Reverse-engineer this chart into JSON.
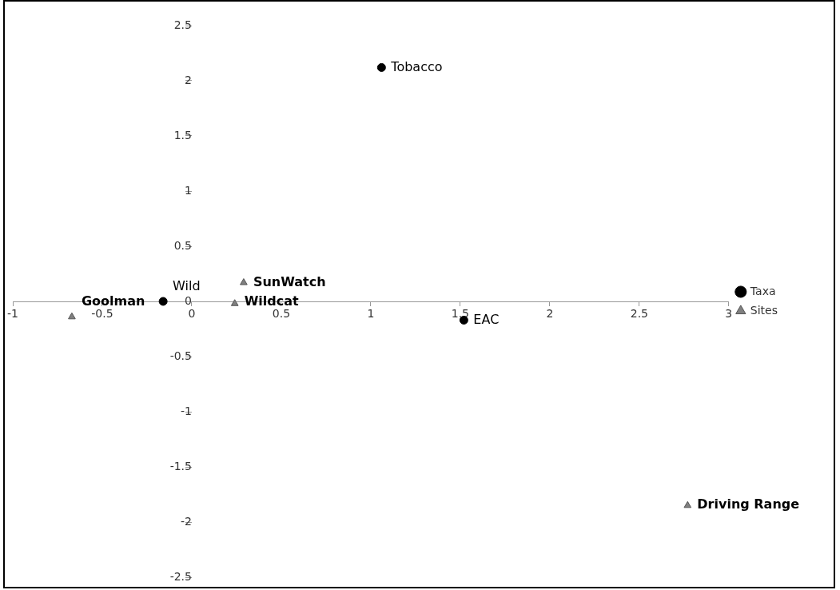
{
  "chart_data": {
    "type": "scatter",
    "series": [
      {
        "name": "Taxa",
        "color": "#000000",
        "marker": "circle",
        "x": [
          1.06,
          -0.16,
          1.52
        ],
        "values": [
          2.12,
          0,
          -0.17
        ]
      },
      {
        "name": "Sites",
        "color": "#808080",
        "marker": "triangle",
        "x": [
          -0.67,
          0.29,
          0.24,
          2.77
        ],
        "values": [
          -0.14,
          0.17,
          -0.02,
          -1.85
        ]
      }
    ],
    "annotations": [
      {
        "text": "Tobacco",
        "x": 1.06,
        "y": 2.12
      },
      {
        "text": "Wild",
        "x": -0.16,
        "y": 0
      },
      {
        "text": "EAC",
        "x": 1.52,
        "y": -0.17
      },
      {
        "text": "Goolman",
        "x": -0.67,
        "y": -0.14
      },
      {
        "text": "SunWatch",
        "x": 0.29,
        "y": 0.17
      },
      {
        "text": "Wildcat",
        "x": 0.24,
        "y": -0.02
      },
      {
        "text": "Driving Range",
        "x": 2.77,
        "y": -1.85
      }
    ],
    "xlim": [
      -1,
      3
    ],
    "xticks": [
      -1,
      -0.5,
      0,
      0.5,
      1,
      1.5,
      2,
      2.5,
      3
    ],
    "ylim": [
      -2.5,
      2.5
    ],
    "yticks": [
      -2.5,
      -2,
      -1.5,
      -1,
      -0.5,
      0,
      0.5,
      1,
      1.5,
      2,
      2.5
    ],
    "grid": false,
    "legend": "right"
  }
}
